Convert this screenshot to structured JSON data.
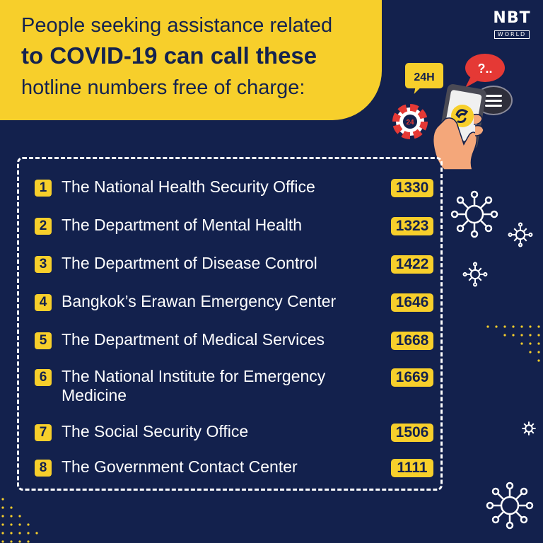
{
  "header": {
    "line1": "People seeking assistance related",
    "line2": "to COVID-19 can call these",
    "line3": "hotline numbers free of charge:"
  },
  "logo": {
    "top": "NBT",
    "bottom": "WORLD"
  },
  "illustration": {
    "badge_24h": "24H",
    "buoy_label": "24",
    "bubble_question": "?.."
  },
  "hotlines": [
    {
      "index": "1",
      "name": "The National Health Security Office",
      "number": "1330"
    },
    {
      "index": "2",
      "name": "The Department of Mental Health",
      "number": "1323"
    },
    {
      "index": "3",
      "name": "The Department of Disease Control",
      "number": "1422"
    },
    {
      "index": "4",
      "name": "Bangkok’s Erawan Emergency Center",
      "number": "1646"
    },
    {
      "index": "5",
      "name": "The Department of Medical Services",
      "number": "1668"
    },
    {
      "index": "6",
      "name": "The National Institute for Emergency Medicine",
      "number": "1669"
    },
    {
      "index": "7",
      "name": "The Social Security Office",
      "number": "1506"
    },
    {
      "index": "8",
      "name": "The Government Contact Center",
      "number": "1111"
    }
  ],
  "colors": {
    "background": "#13214d",
    "accent": "#f7cf2b",
    "text": "#ffffff"
  }
}
